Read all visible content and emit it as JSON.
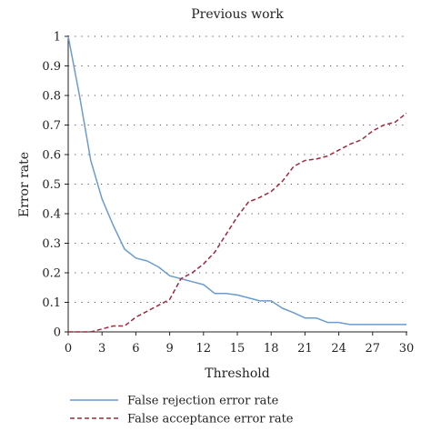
{
  "chart_data": {
    "type": "line",
    "title": "Previous work",
    "xlabel": "Threshold",
    "ylabel": "Error rate",
    "xlim": [
      0,
      30
    ],
    "ylim": [
      0,
      1
    ],
    "xticks": [
      "0",
      "3",
      "6",
      "9",
      "12",
      "15",
      "18",
      "21",
      "24",
      "27",
      "30"
    ],
    "yticks": [
      "0",
      "0.1",
      "0.2",
      "0.3",
      "0.4",
      "0.5",
      "0.6",
      "0.7",
      "0.8",
      "0.9",
      "1"
    ],
    "grid": "horizontal dotted",
    "legend_position": "bottom",
    "series": [
      {
        "name": "False rejection error rate",
        "color": "#6a9bd1",
        "style": "solid",
        "x": [
          0,
          1,
          2,
          3,
          4,
          5,
          6,
          7,
          8,
          9,
          10,
          11,
          12,
          13,
          14,
          15,
          16,
          17,
          18,
          19,
          20,
          21,
          22,
          23,
          24,
          25,
          26,
          27,
          28,
          29,
          30
        ],
        "y": [
          1.0,
          0.8,
          0.58,
          0.45,
          0.36,
          0.28,
          0.25,
          0.24,
          0.22,
          0.19,
          0.18,
          0.17,
          0.16,
          0.13,
          0.13,
          0.125,
          0.115,
          0.105,
          0.105,
          0.08,
          0.065,
          0.047,
          0.047,
          0.032,
          0.032,
          0.025,
          0.025,
          0.025,
          0.025,
          0.025,
          0.025
        ]
      },
      {
        "name": "False acceptance error rate",
        "color": "#a0283c",
        "style": "dashed",
        "x": [
          0,
          1,
          2,
          3,
          4,
          5,
          6,
          7,
          8,
          9,
          10,
          11,
          12,
          13,
          14,
          15,
          16,
          17,
          18,
          19,
          20,
          21,
          22,
          23,
          24,
          25,
          26,
          27,
          28,
          29,
          30
        ],
        "y": [
          0,
          0,
          0,
          0.01,
          0.02,
          0.02,
          0.05,
          0.07,
          0.09,
          0.11,
          0.18,
          0.2,
          0.23,
          0.27,
          0.33,
          0.39,
          0.44,
          0.455,
          0.475,
          0.51,
          0.56,
          0.58,
          0.585,
          0.595,
          0.615,
          0.635,
          0.65,
          0.68,
          0.7,
          0.71,
          0.74
        ]
      }
    ]
  }
}
